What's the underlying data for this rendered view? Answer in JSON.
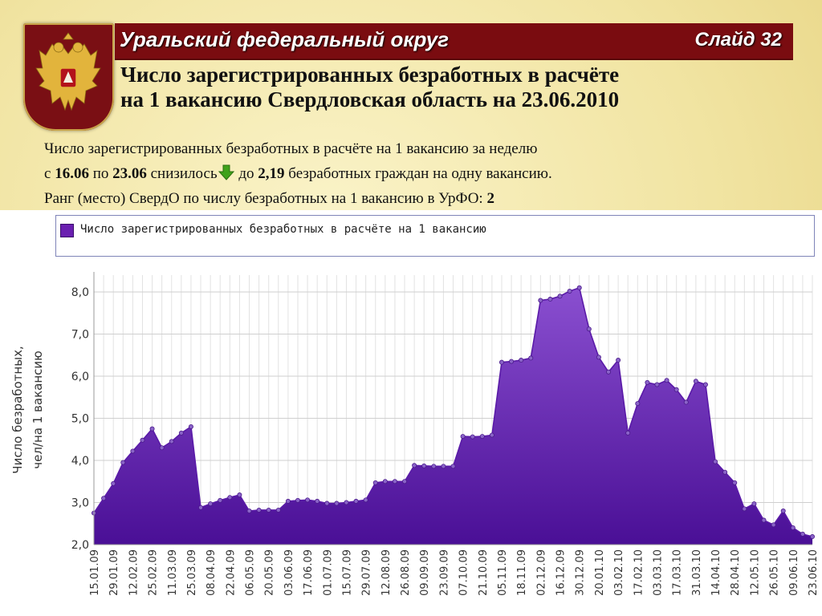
{
  "header": {
    "region_title": "Уральский федеральный округ",
    "slide_label": "Слайд 32",
    "subtitle_line1": "Число зарегистрированных безработных в расчёте",
    "subtitle_line2": "на 1 вакансию Свердловская область на 23.06.2010"
  },
  "description": {
    "line1": "Число зарегистрированных безработных в расчёте на 1 вакансию за неделю",
    "line2_prefix": "с ",
    "date_from": "16.06",
    "line2_mid1": " по ",
    "date_to": "23.06",
    "line2_mid2": " снизилось",
    "line2_mid3": " до ",
    "value": "2,19",
    "line2_suffix": " безработных граждан на одну вакансию.",
    "line3_prefix": "Ранг (место) СвердО по числу безработных на 1 вакансию в УрФО: ",
    "rank": "2"
  },
  "colors": {
    "title_bar": "#7a0c10",
    "series_fill_top": "#8a4fd0",
    "series_fill_bottom": "#4a0f96",
    "series_line": "#5a1aa8",
    "trend_arrow": "#3fa21a"
  },
  "icons": {
    "trend": "green-down-arrow-icon",
    "emblem": "russian-coat-of-arms-icon"
  },
  "chart_data": {
    "type": "area",
    "legend": [
      "Число зарегистрированных безработных в расчёте на 1 вакансию"
    ],
    "ylabel": "Число безработных, чел/на 1 вакансию",
    "ylim": [
      2.0,
      8.4
    ],
    "yticks": [
      "2,0",
      "3,0",
      "4,0",
      "5,0",
      "6,0",
      "7,0",
      "8,0"
    ],
    "grid": true,
    "xtick_labels": [
      "15.01.09",
      "29.01.09",
      "12.02.09",
      "25.02.09",
      "11.03.09",
      "25.03.09",
      "08.04.09",
      "22.04.09",
      "06.05.09",
      "20.05.09",
      "03.06.09",
      "17.06.09",
      "01.07.09",
      "15.07.09",
      "29.07.09",
      "12.08.09",
      "26.08.09",
      "09.09.09",
      "23.09.09",
      "07.10.09",
      "21.10.09",
      "05.11.09",
      "18.11.09",
      "02.12.09",
      "16.12.09",
      "30.12.09",
      "20.01.10",
      "03.02.10",
      "17.02.10",
      "03.03.10",
      "17.03.10",
      "31.03.10",
      "14.04.10",
      "28.04.10",
      "12.05.10",
      "26.05.10",
      "09.06.10",
      "23.06.10"
    ],
    "series": [
      {
        "name": "Число зарегистрированных безработных в расчёте на 1 вакансию",
        "values": [
          2.75,
          3.1,
          3.45,
          3.95,
          4.22,
          4.48,
          4.75,
          4.3,
          4.45,
          4.65,
          4.8,
          2.88,
          2.97,
          3.05,
          3.12,
          3.18,
          2.8,
          2.82,
          2.82,
          2.82,
          3.03,
          3.05,
          3.06,
          3.03,
          2.98,
          2.98,
          3.0,
          3.03,
          3.06,
          3.47,
          3.5,
          3.5,
          3.5,
          3.88,
          3.87,
          3.86,
          3.86,
          3.86,
          4.57,
          4.56,
          4.57,
          4.6,
          6.33,
          6.35,
          6.38,
          6.43,
          7.8,
          7.83,
          7.9,
          8.02,
          8.1,
          7.12,
          6.45,
          6.1,
          6.38,
          4.65,
          5.35,
          5.85,
          5.8,
          5.9,
          5.68,
          5.38,
          5.88,
          5.8,
          3.97,
          3.72,
          3.47,
          2.85,
          2.97,
          2.58,
          2.47,
          2.8,
          2.4,
          2.25,
          2.19
        ]
      }
    ]
  }
}
